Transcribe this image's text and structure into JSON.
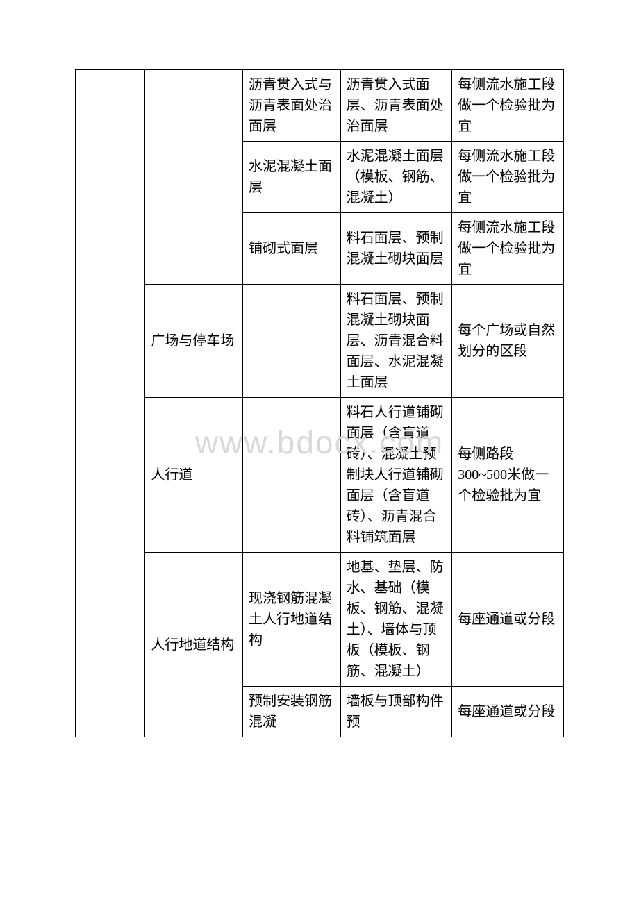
{
  "watermark": "www.bdocx.com",
  "table": {
    "columns": {
      "col1_width": 100,
      "col2_width": 140,
      "col3_width": 140,
      "col4_width": 160,
      "col5_width": 160
    },
    "border_color": "#000000",
    "background_color": "#ffffff",
    "font_size": 20,
    "font_family": "SimSun",
    "text_color": "#000000",
    "rows": [
      {
        "col2_rowspan": 3,
        "col3": "沥青贯入式与沥青表面处治面层",
        "col4": "沥青贯入式面层、沥青表面处治面层",
        "col5": "每侧流水施工段做一个检验批为宜"
      },
      {
        "col3": "水泥混凝土面层",
        "col4": "水泥混凝土面层（模板、钢筋、混凝土）",
        "col5": "每侧流水施工段做一个检验批为宜"
      },
      {
        "col3": "铺砌式面层",
        "col4": "料石面层、预制混凝土砌块面层",
        "col5": "每侧流水施工段做一个检验批为宜"
      },
      {
        "col2": "广场与停车场",
        "col3": "",
        "col4": "料石面层、预制混凝土砌块面层、沥青混合料面层、水泥混凝土面层",
        "col5": "每个广场或自然划分的区段"
      },
      {
        "col2": "人行道",
        "col3": "",
        "col4": "料石人行道铺砌面层（含盲道砖）、混凝土预制块人行道铺砌面层（含盲道砖）、沥青混合料铺筑面层",
        "col5": "每侧路段 300~500米做一个检验批为宜"
      },
      {
        "col2": "人行地道结构",
        "col2_rowspan": 2,
        "col3": "现浇钢筋混凝土人行地道结构",
        "col4": "地基、垫层、防水、基础（模板、钢筋、混凝土）、墙体与顶板（模板、钢筋、混凝土）",
        "col5": "每座通道或分段"
      },
      {
        "col3": "预制安装钢筋混凝",
        "col4": "墙板与顶部构件预",
        "col5": "每座通道或分段"
      }
    ]
  }
}
